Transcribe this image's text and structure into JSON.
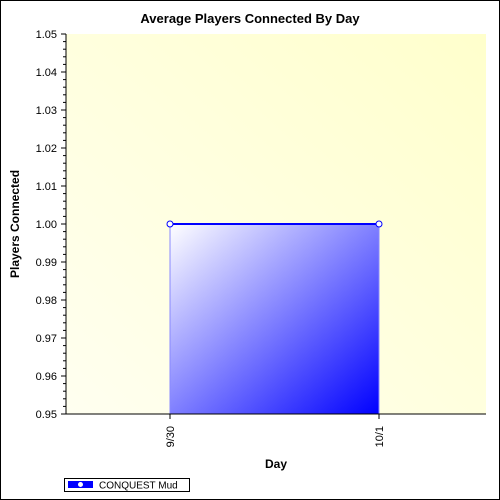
{
  "chart_data": {
    "type": "area",
    "title": "Average Players Connected By Day",
    "xlabel": "Day",
    "ylabel": "Players Connected",
    "categories": [
      "9/30",
      "10/1"
    ],
    "series": [
      {
        "name": "CONQUEST Mud",
        "values": [
          1.0,
          1.0
        ]
      }
    ],
    "ylim": [
      0.95,
      1.05
    ],
    "yticks": [
      "0.95",
      "0.96",
      "0.97",
      "0.98",
      "0.99",
      "1.00",
      "1.01",
      "1.02",
      "1.03",
      "1.04",
      "1.05"
    ],
    "grid": false,
    "legend_position": "bottom-left",
    "colors": {
      "series_line": "#0000ff",
      "series_fill_start": "#ffffff",
      "series_fill_end": "#0000ff",
      "plot_bg_start": "#fffff0",
      "plot_bg_end": "#ffffcc"
    }
  }
}
